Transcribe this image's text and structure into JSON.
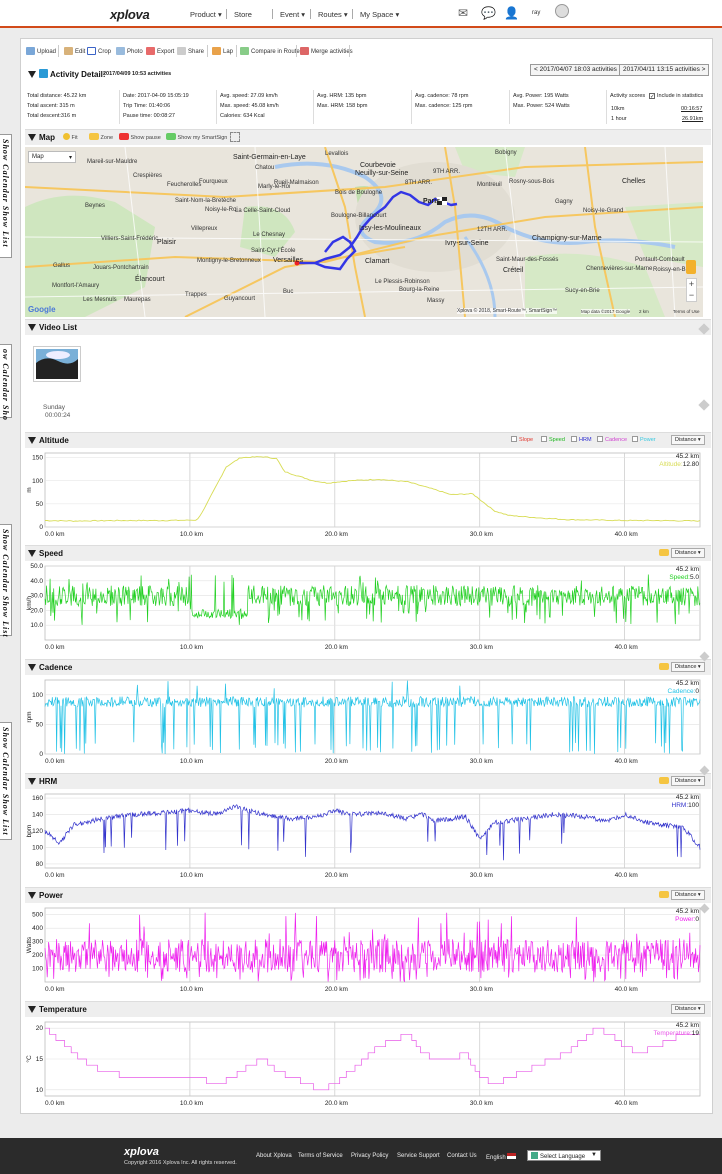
{
  "nav": {
    "logo": "xplova",
    "items": [
      "Product",
      "Store",
      "Event",
      "Routes",
      "My Space"
    ],
    "user": "ray"
  },
  "side_tabs": [
    "Show Calendar  Show  List",
    "ow Calendar  Sho",
    "Show Calendar  Show  List",
    "Show Calendar  Show  List"
  ],
  "toolbar": {
    "upload": "Upload",
    "edit": "Edit",
    "crop": "Crop",
    "photo": "Photo",
    "export": "Export",
    "share": "Share",
    "lap": "Lap",
    "compare": "Compare in Route",
    "merge": "Merge activities"
  },
  "activity": {
    "title": "Activity Detail:",
    "subtitle": "2017/04/09 10:53 activities",
    "prev": "< 2017/04/07 18:03 activities",
    "next": "2017/04/11 13:15 activities >",
    "stats": [
      [
        "Total distance: 45.22 km",
        "Total ascent: 315 m",
        "Total descent:316 m"
      ],
      [
        "Date: 2017-04-09 15:05:19",
        "Trip Time: 01:40:06",
        "Pause time: 00:08:27"
      ],
      [
        "Avg. speed: 27.09 km/h",
        "Max. speed: 45.08 km/h",
        "Calories: 634 Kcal"
      ],
      [
        "Avg. HRM: 135 bpm",
        "Max. HRM: 158 bpm"
      ],
      [
        "Avg. cadence: 78 rpm",
        "Max. cadence: 125 rpm"
      ],
      [
        "Avg. Power: 195 Watts",
        "Max. Power: 524 Watts"
      ]
    ],
    "scores_label": "Activity scores",
    "include_label": "Include in statistics",
    "scores": [
      [
        "10km",
        "00:16:57"
      ],
      [
        "1 hour",
        "26.91km"
      ]
    ]
  },
  "map": {
    "title": "Map",
    "fit": "Fit",
    "zone": "Zone",
    "show_pause": "Show pause",
    "smartsign": "Show my SmartSign",
    "type": "Map",
    "places": [
      "Bobigny",
      "Courbevoie",
      "Saint-Germain-en-Laye",
      "Chatou",
      "Neuilly-sur-Seine",
      "Bois de Boulogne",
      "Paris",
      "9TH ARR.",
      "8TH ARR.",
      "Rosny-sous-Bois",
      "Chelles",
      "Noisy-le-Grand",
      "La Celle-Saint-Cloud",
      "Le Chesnay",
      "Versailles",
      "Issy-les-Moulineaux",
      "Ivry-sur-Seine",
      "12TH ARR.",
      "Champigny-sur-Marne",
      "Clamart",
      "Créteil",
      "Saint-Maur-des-Fossés",
      "Plaisir",
      "Élancourt",
      "Montigny-le-Bretonneux",
      "Guyancourt",
      "Roissy-en-Brie",
      "Pontault-Combault",
      "Maurepas",
      "Buc",
      "Marly-le-Roi",
      "Fourqueux",
      "Crespières",
      "Feucherolles",
      "Beynes",
      "Villepreux",
      "Noisy-le-Roi",
      "Saint-Nom-la-Bretèche",
      "Jouars-Pontchartrain",
      "Gallus",
      "Saint-Cyr-l'École",
      "Massy",
      "Sucy-en-Brie",
      "Le Plessis-Robinson",
      "Montreuil",
      "Les Mesnuls",
      "Montfort-l'Amaury",
      "Villiers-Saint-Frédéric",
      "Boulogne-Billancourt",
      "Mareil-sur-Mauldre",
      "Bourg-la-Reine",
      "Chennevières-sur-Marne",
      "Levallois",
      "Rueil-Malmaison",
      "Gagny",
      "Trappes"
    ],
    "google": "Google",
    "credit": "Xplova © 2018, Smart-Route™, SmartSign™",
    "mapdata": "Map data ©2017 Google",
    "scale": "2 km",
    "terms": "Terms of Use"
  },
  "video": {
    "title": "Video List",
    "day": "Sunday",
    "time": "00:00:24"
  },
  "altitude": {
    "title": "Altitude",
    "legend": [
      "Slope",
      "Speed",
      "HRM",
      "Cadence",
      "Power"
    ],
    "axis_select": "Distance",
    "dist": "45.2 km",
    "label": "Altitude:",
    "value": "12.80",
    "yunit": "m",
    "colors": {
      "Slope": "#e0342b",
      "Speed": "#1bb51b",
      "HRM": "#2b2bd0",
      "Cadence": "#d03fd0",
      "Power": "#35c8e0"
    }
  },
  "speed": {
    "title": "Speed",
    "axis_select": "Distance",
    "dist": "45.2 km",
    "label": "Speed:",
    "value": "5.0",
    "yunit": "km/h"
  },
  "cadence": {
    "title": "Cadence",
    "axis_select": "Distance",
    "dist": "45.2 km",
    "label": "Cadence:",
    "value": "0",
    "yunit": "rpm"
  },
  "hrm": {
    "title": "HRM",
    "axis_select": "Distance",
    "dist": "45.2 km",
    "label": "HRM:",
    "value": "100",
    "yunit": "bpm"
  },
  "power": {
    "title": "Power",
    "axis_select": "Distance",
    "dist": "45.2 km",
    "label": "Power:",
    "value": "0",
    "yunit": "Watts"
  },
  "temperature": {
    "title": "Temperature",
    "axis_select": "Distance",
    "dist": "45.2 km",
    "label": "Temperature:",
    "value": "19",
    "yunit": "°C"
  },
  "footer": {
    "logo": "xplova",
    "copyright": "Copyright 2016 Xplova Inc. All rights reserved.",
    "links": [
      "About Xplova",
      "Terms of Service",
      "Privacy Policy",
      "Service Support",
      "Contact Us",
      "English"
    ],
    "language": "Select Language"
  },
  "chart_data": [
    {
      "type": "line",
      "title": "Altitude",
      "xlabel": "km",
      "ylabel": "m",
      "xlim": [
        0,
        45.2
      ],
      "ylim": [
        0,
        160
      ],
      "xticks": [
        "0.0 km",
        "10.0 km",
        "20.0 km",
        "30.0 km",
        "40.0 km"
      ],
      "yticks": [
        "0",
        "50",
        "100",
        "150"
      ],
      "color": "#d8dc55",
      "x": [
        0,
        2,
        5,
        8,
        10.5,
        11,
        12.5,
        13.5,
        15,
        16,
        16.5,
        18.5,
        19.5,
        21,
        23,
        25,
        27,
        28,
        29.5,
        31,
        32,
        34,
        36,
        38,
        40,
        42,
        45.2
      ],
      "y": [
        14,
        13,
        14,
        14,
        15,
        40,
        130,
        150,
        152,
        148,
        120,
        100,
        95,
        100,
        103,
        98,
        80,
        70,
        72,
        35,
        25,
        20,
        16,
        15,
        14,
        14,
        13
      ]
    },
    {
      "type": "line",
      "title": "Speed",
      "xlabel": "km",
      "ylabel": "km/h",
      "xlim": [
        0,
        45.2
      ],
      "ylim": [
        0,
        50
      ],
      "xticks": [
        "0.0 km",
        "10.0 km",
        "20.0 km",
        "30.0 km",
        "40.0 km"
      ],
      "yticks": [
        "10.0",
        "20.0",
        "30.0",
        "40.0",
        "50.0"
      ],
      "color": "#22d022",
      "avg": 27.09,
      "max": 45.08
    },
    {
      "type": "line",
      "title": "Cadence",
      "xlabel": "km",
      "ylabel": "rpm",
      "xlim": [
        0,
        45.2
      ],
      "ylim": [
        0,
        125
      ],
      "xticks": [
        "0.0 km",
        "10.0 km",
        "20.0 km",
        "30.0 km",
        "40.0 km"
      ],
      "yticks": [
        "0",
        "50",
        "100"
      ],
      "color": "#22c2e6",
      "avg": 78,
      "max": 125
    },
    {
      "type": "line",
      "title": "HRM",
      "xlabel": "km",
      "ylabel": "bpm",
      "xlim": [
        0,
        45.2
      ],
      "ylim": [
        75,
        165
      ],
      "xticks": [
        "0.0 km",
        "10.0 km",
        "20.0 km",
        "30.0 km",
        "40.0 km"
      ],
      "yticks": [
        "80",
        "100",
        "120",
        "140",
        "160"
      ],
      "color": "#3333cc",
      "x": [
        0,
        1,
        2,
        4,
        6,
        8,
        10,
        12,
        13,
        15,
        17,
        19,
        20,
        21,
        23,
        25,
        26,
        27,
        29,
        30,
        31,
        33,
        35,
        37,
        39,
        40,
        42,
        44,
        45.2
      ],
      "y": [
        120,
        105,
        128,
        135,
        140,
        142,
        145,
        140,
        150,
        140,
        135,
        138,
        145,
        140,
        142,
        135,
        140,
        132,
        138,
        110,
        130,
        135,
        140,
        138,
        132,
        140,
        128,
        125,
        100
      ]
    },
    {
      "type": "line",
      "title": "Power",
      "xlabel": "km",
      "ylabel": "Watts",
      "xlim": [
        0,
        45.2
      ],
      "ylim": [
        0,
        550
      ],
      "xticks": [
        "0.0 km",
        "10.0 km",
        "20.0 km",
        "30.0 km",
        "40.0 km"
      ],
      "yticks": [
        "100",
        "200",
        "300",
        "400",
        "500"
      ],
      "color": "#ee22ee",
      "avg": 195,
      "max": 524
    },
    {
      "type": "line",
      "title": "Temperature",
      "xlabel": "km",
      "ylabel": "°C",
      "xlim": [
        0,
        45.2
      ],
      "ylim": [
        9,
        21
      ],
      "xticks": [
        "0.0 km",
        "10.0 km",
        "20.0 km",
        "30.0 km",
        "40.0 km"
      ],
      "yticks": [
        "10",
        "15",
        "20"
      ],
      "color": "#e85ae8",
      "x": [
        0,
        1,
        2,
        3,
        4,
        6,
        8,
        10,
        12,
        13,
        14,
        15,
        16,
        17,
        18,
        19,
        20,
        21,
        22,
        23,
        24,
        25,
        26,
        27,
        28,
        29,
        30,
        31,
        32,
        33,
        34,
        35,
        36,
        37,
        38,
        39,
        40,
        41,
        42,
        43,
        44,
        45.2
      ],
      "y": [
        20,
        18,
        16,
        14,
        13,
        12,
        12,
        12,
        11,
        12,
        14,
        15,
        13,
        12,
        11,
        10,
        11,
        13,
        15,
        17,
        18,
        19,
        16,
        15,
        15,
        16,
        12,
        11,
        12,
        13,
        14,
        15,
        16,
        18,
        20,
        19,
        17,
        16,
        17,
        18,
        19,
        19
      ]
    }
  ]
}
